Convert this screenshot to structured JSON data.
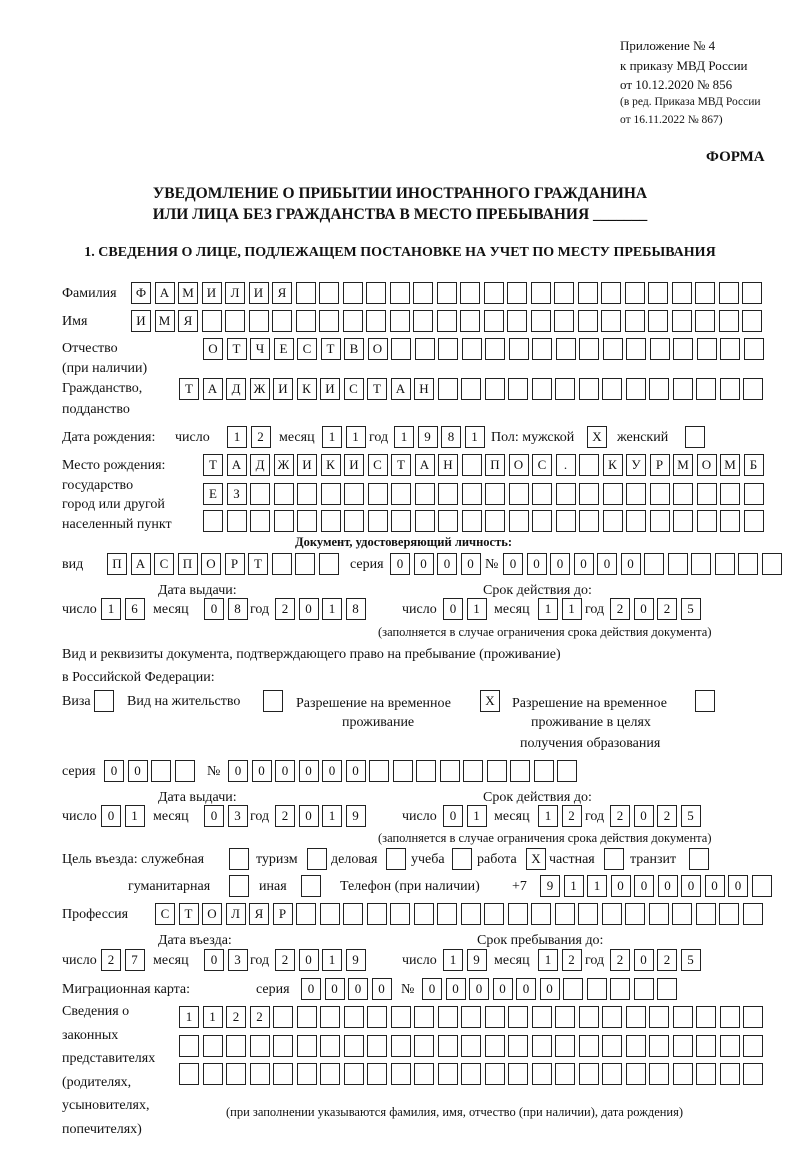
{
  "header": {
    "appendix": "Приложение № 4",
    "order": "к приказу МВД России",
    "order_date": "от 10.12.2020 № 856",
    "revision1": "(в ред. Приказа МВД России",
    "revision2": "от 16.11.2022 № 867)",
    "form": "ФОРМА",
    "title1": "УВЕДОМЛЕНИЕ О ПРИБЫТИИ ИНОСТРАННОГО ГРАЖДАНИНА",
    "title2": "ИЛИ ЛИЦА БЕЗ ГРАЖДАНСТВА В МЕСТО ПРЕБЫВАНИЯ _______",
    "section1": "1. СВЕДЕНИЯ О ЛИЦЕ, ПОДЛЕЖАЩЕМ ПОСТАНОВКЕ НА УЧЕТ ПО МЕСТУ ПРЕБЫВАНИЯ"
  },
  "labels": {
    "surname": "Фамилия",
    "name": "Имя",
    "patronymic": "Отчество",
    "patronymic2": "(при наличии)",
    "citizenship": "Гражданство,",
    "citizenship2": "подданство",
    "birth_date": "Дата рождения:",
    "day": "число",
    "month": "месяц",
    "year": "год",
    "sex": "Пол: мужской",
    "female": "женский",
    "birth_place1": "Место рождения:",
    "birth_place2": "государство",
    "birth_place3": "город или другой",
    "birth_place4": "населенный пункт",
    "id_doc": "Документ, удостоверяющий личность:",
    "kind": "вид",
    "series": "серия",
    "number": "№",
    "issue_date": "Дата выдачи:",
    "valid_until": "Срок действия до:",
    "valid_note": "(заполняется в случае ограничения срока действия документа)",
    "right_doc1": "Вид и реквизиты документа, подтверждающего право на пребывание (проживание)",
    "right_doc2": "в Российской Федерации:",
    "visa": "Виза",
    "residence": "Вид на жительство",
    "trp1": "Разрешение на временное",
    "trp2": "проживание",
    "trpe1": "Разрешение на временное",
    "trpe2": "проживание в целях",
    "trpe3": "получения образования",
    "purpose": "Цель въезда: служебная",
    "tourism": "туризм",
    "business": "деловая",
    "study": "учеба",
    "work": "работа",
    "private": "частная",
    "transit": "транзит",
    "humanitarian": "гуманитарная",
    "other": "иная",
    "phone": "Телефон (при наличии)",
    "phone_prefix": "+7",
    "profession": "Профессия",
    "entry_date": "Дата въезда:",
    "stay_until": "Срок пребывания до:",
    "migration_card": "Миграционная карта:",
    "reps1": "Сведения о",
    "reps2": "законных",
    "reps3": "представителях",
    "reps4": "(родителях,",
    "reps5": "усыновителях,",
    "reps6": "попечителях)",
    "reps_note": "(при заполнении указываются фамилия, имя, отчество (при наличии), дата рождения)"
  },
  "person": {
    "surname": "ФАМИЛИЯ",
    "name": "ИМЯ",
    "patronymic": "ОТЧЕСТВО",
    "citizenship": "ТАДЖИКИСТАН",
    "birth_day": "12",
    "birth_month": "11",
    "birth_year": "1981",
    "male": "X",
    "female": "",
    "birth_place": [
      "ТАДЖИКИСТАН ПОС. КУРМОМБ",
      "ЕЗ",
      ""
    ]
  },
  "id_document": {
    "kind": "ПАСПОРТ",
    "series": "0000",
    "number": "000000",
    "issue_day": "16",
    "issue_month": "08",
    "issue_year": "2018",
    "valid_day": "01",
    "valid_month": "11",
    "valid_year": "2025"
  },
  "right_document": {
    "visa": "",
    "residence_permit": "",
    "temporary_residence": "X",
    "temporary_residence_education": "",
    "series": "00",
    "number": "000000",
    "issue_day": "01",
    "issue_month": "03",
    "issue_year": "2019",
    "valid_day": "01",
    "valid_month": "12",
    "valid_year": "2025"
  },
  "purpose": {
    "official": "",
    "tourism": "",
    "business": "",
    "study": "",
    "work": "X",
    "private": "",
    "transit": "",
    "humanitarian": "",
    "other": ""
  },
  "phone": "911000000",
  "profession": "СТОЛЯР",
  "entry": {
    "entry_day": "27",
    "entry_month": "03",
    "entry_year": "2019",
    "stay_day": "19",
    "stay_month": "12",
    "stay_year": "2025"
  },
  "migration_card": {
    "series": "0000",
    "number": "000000"
  },
  "representatives": [
    "1122",
    "",
    ""
  ]
}
